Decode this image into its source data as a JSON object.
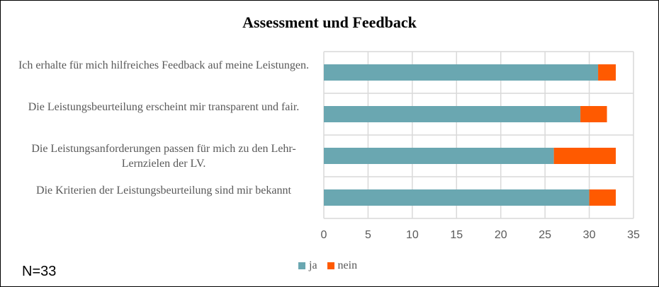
{
  "chart_data": {
    "type": "bar",
    "orientation": "horizontal",
    "stacked": true,
    "title": "Assessment und Feedback",
    "categories": [
      "Ich erhalte für mich hilfreiches Feedback auf meine Leistungen.",
      "Die Leistungsbeurteilung erscheint mir transparent und fair.",
      "Die Leistungsanforderungen passen für mich zu den Lehr-Lernzielen der LV.",
      "Die Kriterien der Leistungsbeurteilung sind mir bekannt"
    ],
    "series": [
      {
        "name": "ja",
        "color": "#6aa7b1",
        "values": [
          31,
          29,
          26,
          30
        ]
      },
      {
        "name": "nein",
        "color": "#ff5a00",
        "values": [
          2,
          3,
          7,
          3
        ]
      }
    ],
    "xlim": [
      0,
      35
    ],
    "xticks": [
      0,
      5,
      10,
      15,
      20,
      25,
      30,
      35
    ],
    "grid": true,
    "legend": "bottom",
    "annotation": "N=33"
  }
}
